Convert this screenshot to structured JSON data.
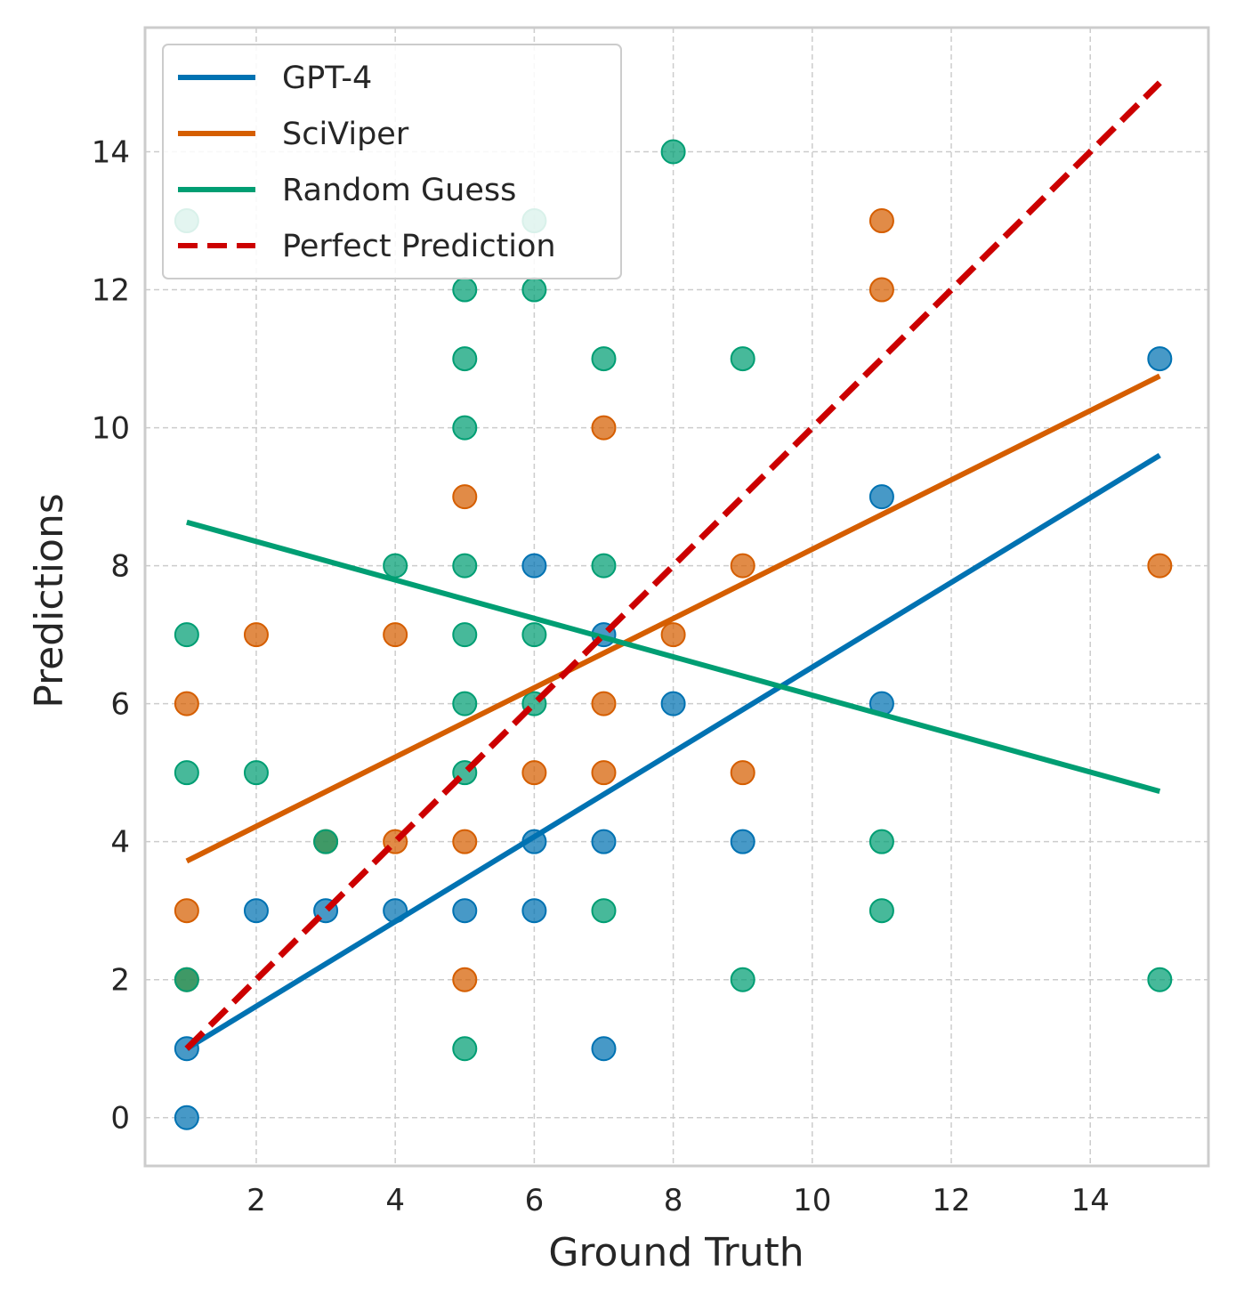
{
  "chart_data": {
    "type": "scatter",
    "title": "",
    "xlabel": "Ground Truth",
    "ylabel": "Predictions",
    "xlim": [
      0.4,
      15.7
    ],
    "ylim": [
      -0.7,
      15.8
    ],
    "xticks": [
      2,
      4,
      6,
      8,
      10,
      12,
      14
    ],
    "yticks": [
      0,
      2,
      4,
      6,
      8,
      10,
      12,
      14
    ],
    "grid": true,
    "legend_position": "top-left",
    "series": [
      {
        "name": "GPT-4",
        "color": "#0072B2",
        "points": [
          [
            1,
            0
          ],
          [
            1,
            1
          ],
          [
            2,
            3
          ],
          [
            3,
            3
          ],
          [
            4,
            3
          ],
          [
            5,
            3
          ],
          [
            6,
            3
          ],
          [
            6,
            4
          ],
          [
            7,
            4
          ],
          [
            7,
            1
          ],
          [
            7,
            7
          ],
          [
            6,
            8
          ],
          [
            8,
            6
          ],
          [
            9,
            4
          ],
          [
            11,
            9
          ],
          [
            11,
            6
          ],
          [
            15,
            11
          ]
        ],
        "fit": [
          [
            1,
            1.0
          ],
          [
            15,
            9.6
          ]
        ]
      },
      {
        "name": "SciViper",
        "color": "#D55E00",
        "points": [
          [
            1,
            2
          ],
          [
            1,
            3
          ],
          [
            1,
            6
          ],
          [
            2,
            7
          ],
          [
            3,
            4
          ],
          [
            4,
            4
          ],
          [
            4,
            7
          ],
          [
            5,
            2
          ],
          [
            5,
            4
          ],
          [
            5,
            9
          ],
          [
            6,
            5
          ],
          [
            7,
            5
          ],
          [
            7,
            6
          ],
          [
            7,
            10
          ],
          [
            8,
            7
          ],
          [
            9,
            5
          ],
          [
            9,
            8
          ],
          [
            11,
            12
          ],
          [
            11,
            13
          ],
          [
            15,
            8
          ]
        ],
        "fit": [
          [
            1,
            3.72
          ],
          [
            15,
            10.75
          ]
        ]
      },
      {
        "name": "Random Guess",
        "color": "#009E73",
        "points": [
          [
            1,
            13
          ],
          [
            1,
            7
          ],
          [
            1,
            5
          ],
          [
            1,
            2
          ],
          [
            2,
            5
          ],
          [
            3,
            4
          ],
          [
            4,
            8
          ],
          [
            5,
            12
          ],
          [
            5,
            11
          ],
          [
            5,
            10
          ],
          [
            5,
            8
          ],
          [
            5,
            7
          ],
          [
            5,
            6
          ],
          [
            5,
            5
          ],
          [
            5,
            1
          ],
          [
            6,
            13
          ],
          [
            6,
            12
          ],
          [
            6,
            7
          ],
          [
            6,
            6
          ],
          [
            7,
            11
          ],
          [
            7,
            8
          ],
          [
            7,
            3
          ],
          [
            8,
            14
          ],
          [
            9,
            11
          ],
          [
            9,
            2
          ],
          [
            11,
            4
          ],
          [
            11,
            3
          ],
          [
            15,
            2
          ]
        ],
        "fit": [
          [
            1,
            8.63
          ],
          [
            15,
            4.73
          ]
        ]
      },
      {
        "name": "Perfect Prediction",
        "color": "#CC0000",
        "dashed": true,
        "fit": [
          [
            1,
            1
          ],
          [
            15,
            15
          ]
        ]
      }
    ]
  }
}
